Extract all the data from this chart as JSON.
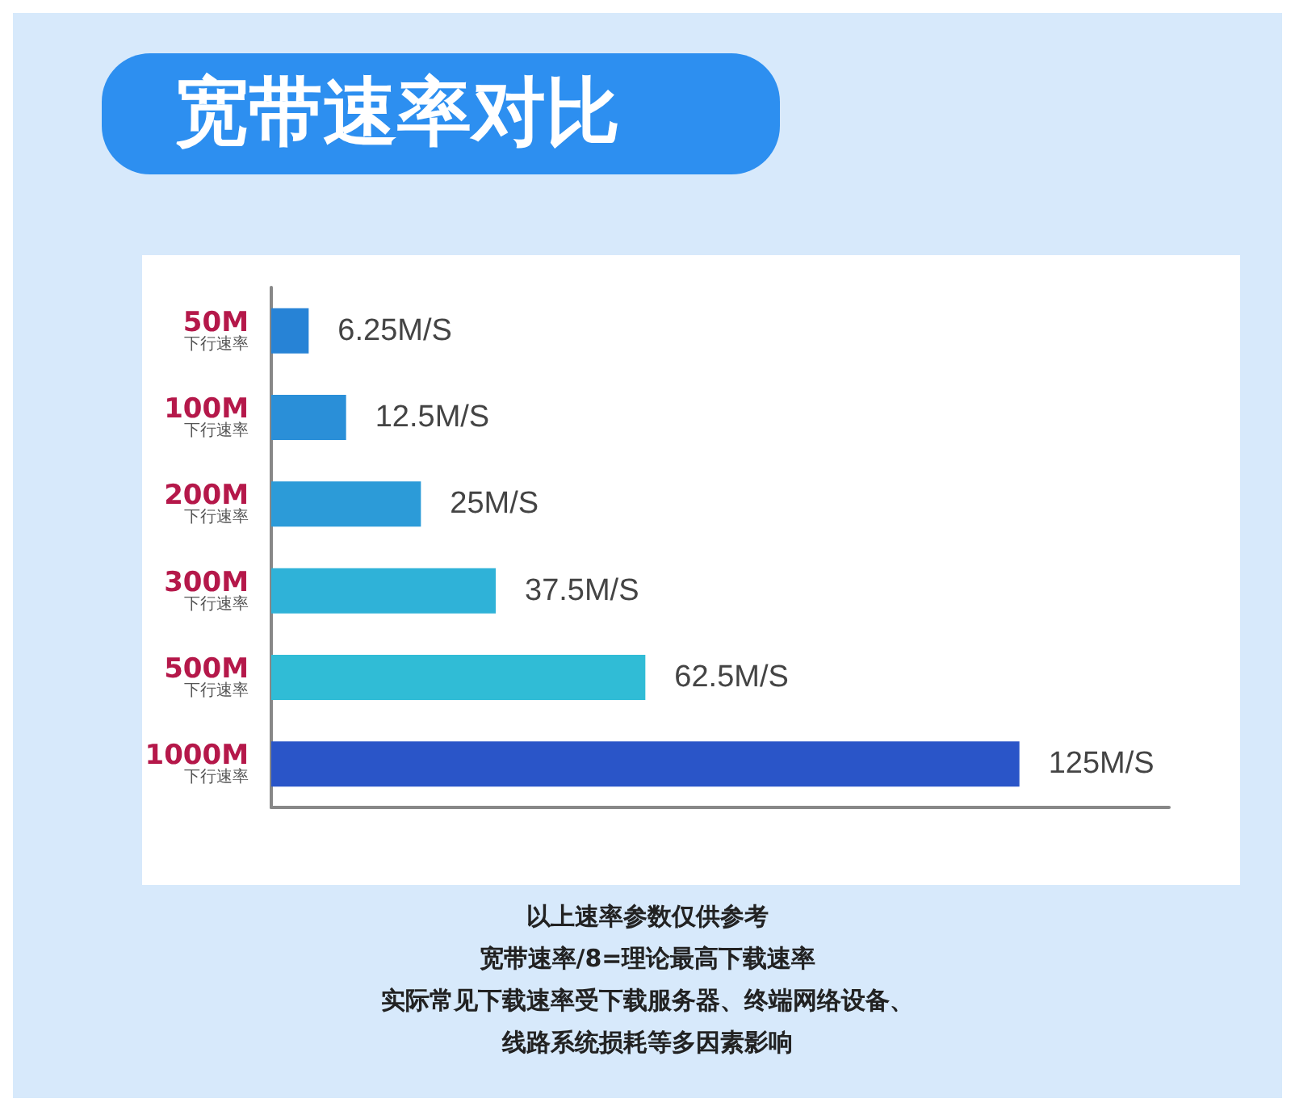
{
  "chart_data": {
    "type": "bar",
    "orientation": "horizontal",
    "title": "宽带速率对比",
    "categories": [
      "50M\n下行速率",
      "100M\n下行速率",
      "200M\n下行速率",
      "300M\n下行速率",
      "500M\n下行速率",
      "1000M\n下行速率"
    ],
    "values": [
      6.25,
      12.5,
      25,
      37.5,
      62.5,
      125
    ],
    "value_labels": [
      "6.25M/S",
      "12.5M/S",
      "25M/S",
      "37.5M/S",
      "62.5M/S",
      "125M/S"
    ],
    "colors": [
      "#2783d6",
      "#2a8fd8",
      "#2c9bd8",
      "#2fb2d8",
      "#30bcd6",
      "#2a55c8"
    ],
    "tick_labels": "y",
    "annotations": [
      "以上速率参数仅供参考",
      "宽带速率/8=理论最高下载速率",
      "实际常见下载速率受下载服务器、终端网络设备、",
      "线路系统损耗等多因素影响"
    ]
  }
}
